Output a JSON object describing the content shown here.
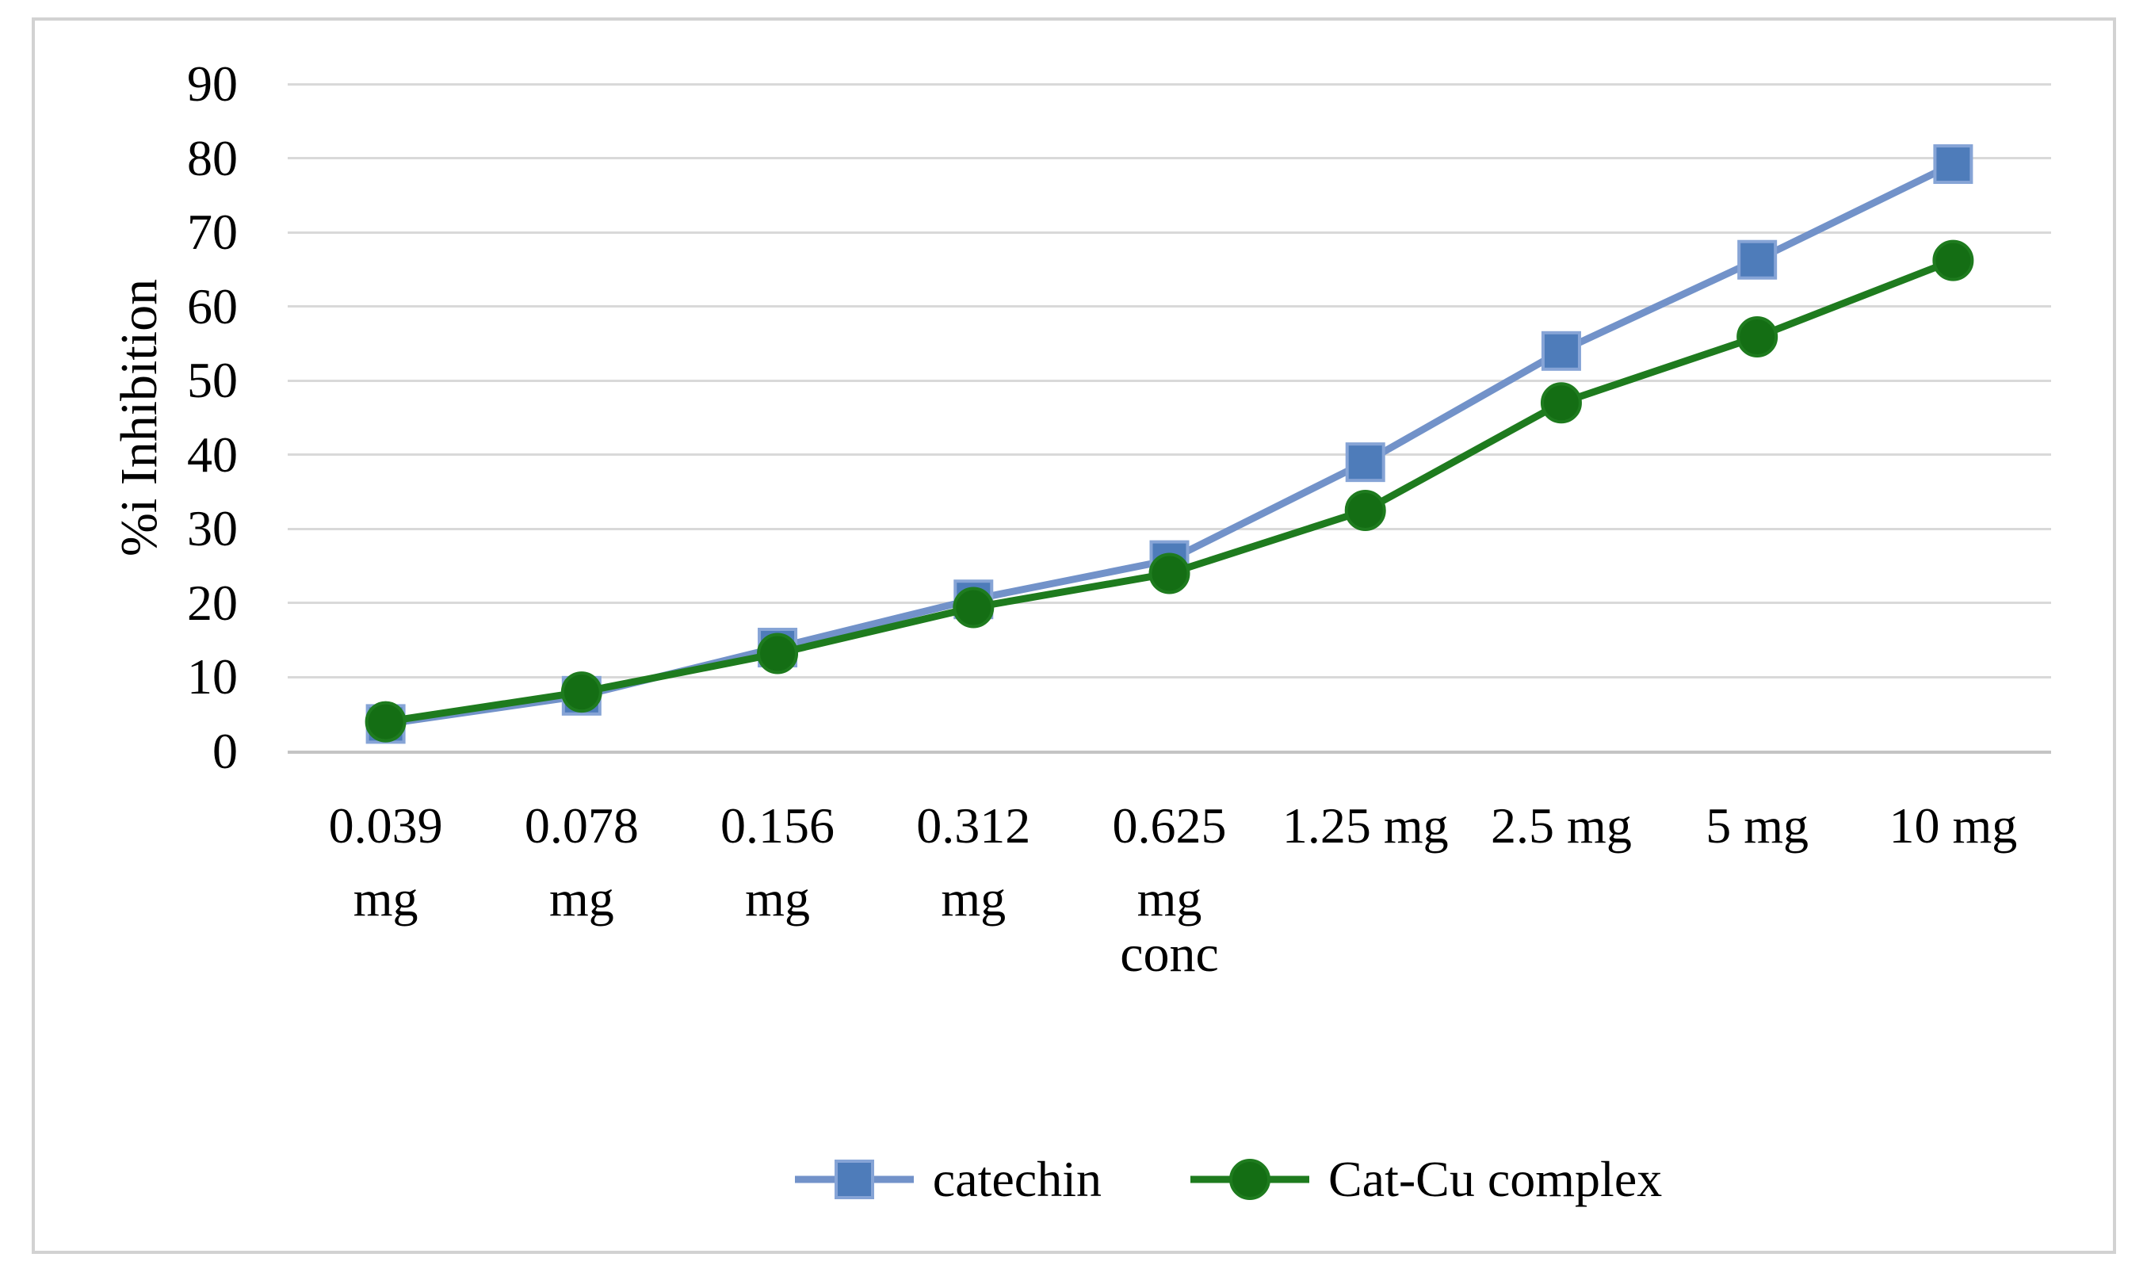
{
  "chart_data": {
    "type": "line",
    "title": "",
    "xlabel": "conc",
    "ylabel": "%i Inhibition",
    "ylim": [
      0,
      90
    ],
    "yticks": [
      0,
      10,
      20,
      30,
      40,
      50,
      60,
      70,
      80,
      90
    ],
    "grid": "horizontal",
    "legend_position": "bottom-center",
    "categories": [
      "0.039 mg",
      "0.078 mg",
      "0.156 mg",
      "0.312 mg",
      "0.625 mg",
      "1.25 mg",
      "2.5 mg",
      "5 mg",
      "10 mg"
    ],
    "category_label_lines": [
      [
        "0.039",
        "mg"
      ],
      [
        "0.078",
        "mg"
      ],
      [
        "0.156",
        "mg"
      ],
      [
        "0.312",
        "mg"
      ],
      [
        "0.625",
        "mg"
      ],
      [
        "1.25 mg"
      ],
      [
        "2.5 mg"
      ],
      [
        "5 mg"
      ],
      [
        "10 mg"
      ]
    ],
    "series": [
      {
        "name": "catechin",
        "marker": "square",
        "line_color": "#7292c9",
        "marker_color": "#4e7cba",
        "marker_edge_color": "#86a4d6",
        "values": [
          3.7,
          7.5,
          14.0,
          20.5,
          25.8,
          39.0,
          54.0,
          66.3,
          79.2
        ]
      },
      {
        "name": "Cat-Cu complex",
        "marker": "circle",
        "line_color": "#1e7b1e",
        "marker_color": "#146e14",
        "marker_edge_color": "#1e7b1e",
        "values": [
          4.0,
          8.0,
          13.2,
          19.4,
          24.0,
          32.5,
          47.0,
          55.9,
          66.2
        ]
      }
    ]
  },
  "colors": {
    "gridline": "#d9d9d9",
    "axis_line": "#c4c4c4",
    "figure_border": "#d2d2d2",
    "background": "#ffffff",
    "text": "#000000"
  }
}
